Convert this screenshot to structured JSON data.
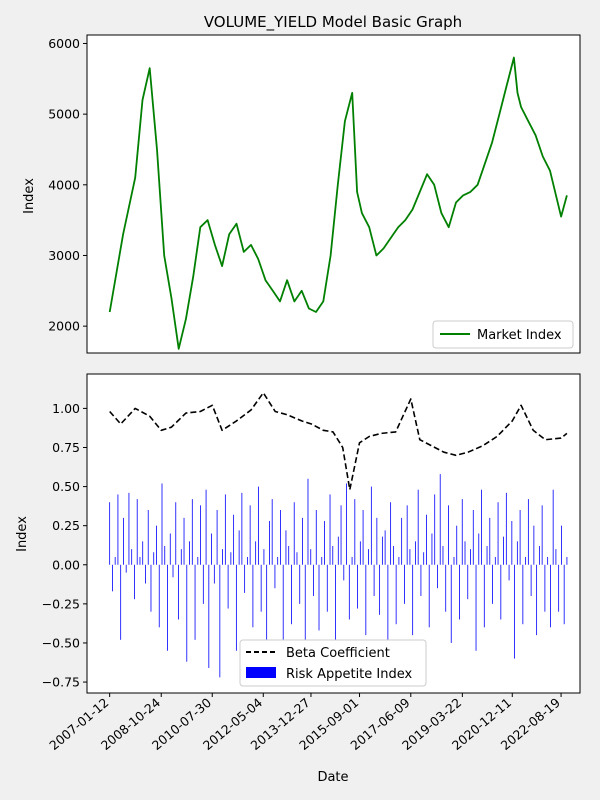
{
  "chart_data": [
    {
      "type": "line",
      "title": "VOLUME_YIELD Model Basic Graph",
      "xlabel": "",
      "ylabel": "Index",
      "ylim": [
        1620,
        6120
      ],
      "yticks": [
        2000,
        3000,
        4000,
        5000,
        6000
      ],
      "ytick_labels": [
        "2000",
        "3000",
        "4000",
        "5000",
        "6000"
      ],
      "legend_position": "lower right",
      "grid": false,
      "series": [
        {
          "name": "Market Index",
          "color": "#008000",
          "x": [
            "2007-01-12",
            "2007-07-01",
            "2007-12-01",
            "2008-03-01",
            "2008-06-01",
            "2008-09-01",
            "2008-12-01",
            "2009-03-01",
            "2009-06-01",
            "2009-09-01",
            "2009-12-01",
            "2010-03-01",
            "2010-06-01",
            "2010-09-01",
            "2010-12-01",
            "2011-03-01",
            "2011-06-01",
            "2011-09-01",
            "2011-12-01",
            "2012-03-01",
            "2012-06-01",
            "2012-09-01",
            "2012-12-01",
            "2013-03-01",
            "2013-06-01",
            "2013-09-01",
            "2013-12-01",
            "2014-03-01",
            "2014-06-01",
            "2014-09-01",
            "2014-12-01",
            "2015-03-01",
            "2015-06-01",
            "2015-08-01",
            "2015-10-01",
            "2016-01-01",
            "2016-04-01",
            "2016-07-01",
            "2016-10-01",
            "2017-01-01",
            "2017-04-01",
            "2017-07-01",
            "2017-10-01",
            "2018-01-01",
            "2018-04-01",
            "2018-07-01",
            "2018-10-01",
            "2019-01-01",
            "2019-04-01",
            "2019-07-01",
            "2019-10-01",
            "2020-01-01",
            "2020-04-01",
            "2020-07-01",
            "2020-10-01",
            "2021-01-01",
            "2021-02-15",
            "2021-04-01",
            "2021-07-01",
            "2021-10-01",
            "2022-01-01",
            "2022-04-01",
            "2022-08-19",
            "2022-11-01"
          ],
          "values": [
            2200,
            3300,
            4100,
            5200,
            5650,
            4500,
            3000,
            2400,
            1680,
            2100,
            2700,
            3400,
            3500,
            3150,
            2850,
            3300,
            3450,
            3050,
            3150,
            2950,
            2650,
            2500,
            2350,
            2650,
            2350,
            2500,
            2250,
            2200,
            2350,
            3000,
            4000,
            4900,
            5300,
            3900,
            3600,
            3400,
            3000,
            3100,
            3250,
            3400,
            3500,
            3650,
            3900,
            4150,
            4000,
            3600,
            3400,
            3750,
            3850,
            3900,
            4000,
            4300,
            4600,
            5000,
            5400,
            5800,
            5300,
            5100,
            4900,
            4700,
            4400,
            4200,
            3550,
            3850
          ]
        }
      ]
    },
    {
      "type": "line",
      "title": "",
      "xlabel": "Date",
      "ylabel": "Index",
      "ylim": [
        -0.82,
        1.22
      ],
      "yticks": [
        -0.75,
        -0.5,
        -0.25,
        0.0,
        0.25,
        0.5,
        0.75,
        1.0
      ],
      "ytick_labels": [
        "−0.75",
        "−0.50",
        "−0.25",
        "0.00",
        "0.25",
        "0.50",
        "0.75",
        "1.00"
      ],
      "xtick_labels": [
        "2007-01-12",
        "2008-10-24",
        "2010-07-30",
        "2012-05-04",
        "2013-12-27",
        "2015-09-01",
        "2017-06-09",
        "2019-03-22",
        "2020-12-11",
        "2022-08-19"
      ],
      "legend_position": "lower center",
      "grid": false,
      "series": [
        {
          "name": "Beta Coefficient",
          "color": "#000000",
          "style": "dashed",
          "x": [
            "2007-01-12",
            "2007-06-01",
            "2007-12-01",
            "2008-06-01",
            "2008-10-24",
            "2009-03-01",
            "2009-09-01",
            "2010-03-01",
            "2010-07-30",
            "2010-12-01",
            "2011-06-01",
            "2011-12-01",
            "2012-05-04",
            "2012-10-01",
            "2013-03-01",
            "2013-09-01",
            "2014-01-01",
            "2014-06-01",
            "2014-10-01",
            "2015-02-01",
            "2015-05-01",
            "2015-09-01",
            "2016-01-01",
            "2016-06-01",
            "2016-12-01",
            "2017-03-01",
            "2017-06-09",
            "2017-10-01",
            "2018-03-01",
            "2018-08-01",
            "2019-01-01",
            "2019-06-01",
            "2019-12-01",
            "2020-06-01",
            "2020-12-11",
            "2021-04-01",
            "2021-09-01",
            "2022-02-01",
            "2022-08-19",
            "2022-11-01"
          ],
          "values": [
            0.98,
            0.9,
            1.0,
            0.95,
            0.86,
            0.88,
            0.97,
            0.98,
            1.02,
            0.86,
            0.92,
            0.99,
            1.1,
            0.98,
            0.96,
            0.92,
            0.9,
            0.86,
            0.85,
            0.75,
            0.48,
            0.78,
            0.82,
            0.84,
            0.85,
            0.95,
            1.06,
            0.8,
            0.76,
            0.72,
            0.7,
            0.72,
            0.76,
            0.82,
            0.92,
            1.02,
            0.86,
            0.8,
            0.81,
            0.84
          ]
        },
        {
          "name": "Risk Appetite Index",
          "color": "#0000ff",
          "type": "bar",
          "x_start": "2007-01-12",
          "x_end": "2022-11-01",
          "values": [
            0.4,
            -0.17,
            0.05,
            0.45,
            -0.48,
            0.3,
            -0.05,
            0.46,
            0.1,
            -0.22,
            0.42,
            0.05,
            0.15,
            -0.12,
            0.35,
            -0.3,
            0.08,
            0.25,
            -0.4,
            0.52,
            0.12,
            -0.55,
            0.2,
            -0.08,
            0.4,
            -0.35,
            0.1,
            0.3,
            -0.62,
            0.15,
            0.42,
            -0.48,
            0.05,
            0.38,
            -0.25,
            0.48,
            -0.66,
            0.2,
            -0.12,
            0.35,
            -0.72,
            0.1,
            0.45,
            -0.28,
            0.08,
            0.32,
            -0.55,
            0.22,
            0.46,
            -0.18,
            0.05,
            0.38,
            -0.4,
            0.15,
            0.5,
            -0.3,
            0.1,
            -0.64,
            0.28,
            0.42,
            -0.15,
            0.05,
            0.35,
            -0.48,
            0.22,
            0.12,
            -0.38,
            0.4,
            0.08,
            -0.25,
            0.3,
            -0.5,
            0.55,
            0.1,
            -0.2,
            0.35,
            -0.42,
            0.05,
            0.28,
            -0.3,
            0.45,
            0.12,
            -0.58,
            0.18,
            0.38,
            -0.1,
            0.52,
            -0.35,
            0.05,
            0.42,
            -0.28,
            0.15,
            0.35,
            -0.45,
            0.1,
            0.5,
            -0.2,
            0.3,
            -0.32,
            0.18,
            0.22,
            -0.52,
            0.4,
            0.12,
            -0.38,
            0.05,
            0.3,
            -0.25,
            0.38,
            0.1,
            -0.45,
            0.15,
            0.48,
            -0.2,
            0.08,
            0.32,
            -0.4,
            0.2,
            0.45,
            -0.15,
            0.58,
            0.12,
            -0.3,
            0.38,
            -0.5,
            0.05,
            0.25,
            -0.35,
            0.42,
            0.15,
            -0.22,
            0.1,
            0.35,
            -0.55,
            0.2,
            0.48,
            -0.4,
            0.12,
            0.3,
            -0.25,
            0.05,
            0.4,
            -0.35,
            0.18,
            0.46,
            -0.1,
            0.28,
            -0.6,
            0.15,
            0.35,
            -0.38,
            0.05,
            0.42,
            -0.2,
            0.25,
            -0.45,
            0.12,
            0.38,
            -0.3,
            0.05,
            -0.4,
            0.48,
            0.1,
            -0.3,
            0.25,
            -0.38,
            0.05
          ]
        }
      ]
    }
  ]
}
